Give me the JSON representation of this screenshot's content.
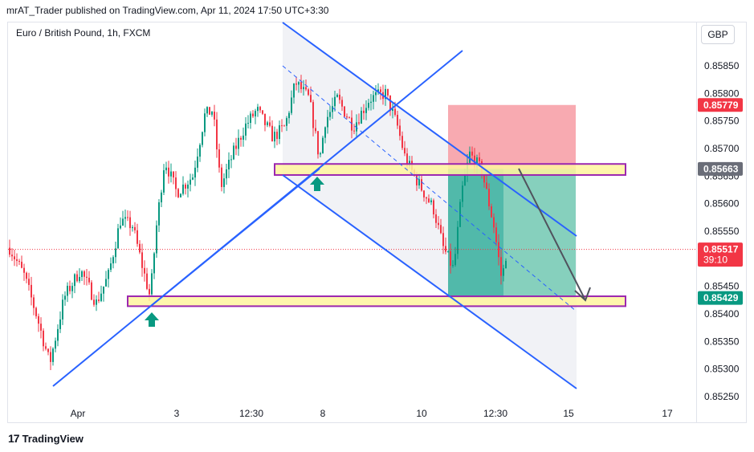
{
  "header": {
    "title": "mrAT_Trader published on TradingView.com, Apr 11, 2024 17:50 UTC+3:30"
  },
  "symbol": {
    "label": "Euro / British Pound, 1h, FXCM"
  },
  "currency": {
    "label": "GBP"
  },
  "footer": {
    "brand": "TradingView"
  },
  "colors": {
    "up": "#089981",
    "down": "#f23645",
    "trendline": "#2962ff",
    "zone_border": "#9c27b0",
    "zone_fill": "#fff59d"
  },
  "chart_data": {
    "type": "candlestick",
    "symbol": "EURGBP",
    "timeframe": "1h",
    "ylim": [
      0.85225,
      0.85915
    ],
    "y_ticks": [
      "0.85850",
      "0.85800",
      "0.85750",
      "0.85700",
      "0.85650",
      "0.85600",
      "0.85550",
      "0.85500",
      "0.85450",
      "0.85400",
      "0.85350",
      "0.85300",
      "0.85250"
    ],
    "x_ticks": [
      "Apr",
      "3",
      "12:30",
      "8",
      "10",
      "12:30",
      "15",
      "17"
    ],
    "price_labels": [
      {
        "value": "0.85779",
        "color": "#f23645",
        "sub": ""
      },
      {
        "value": "0.85663",
        "color": "#6a6d78",
        "sub": ""
      },
      {
        "value": "0.85517",
        "color": "#f23645",
        "sub": "39:10"
      },
      {
        "value": "0.85429",
        "color": "#089981",
        "sub": ""
      }
    ],
    "current_price": 0.85517,
    "zones": [
      {
        "name": "resistance-support zone",
        "low": 0.85652,
        "high": 0.85672
      },
      {
        "name": "demand zone",
        "low": 0.85414,
        "high": 0.85432
      }
    ],
    "short_position": {
      "entry": 0.85663,
      "stop": 0.85779,
      "target": 0.85429
    }
  }
}
